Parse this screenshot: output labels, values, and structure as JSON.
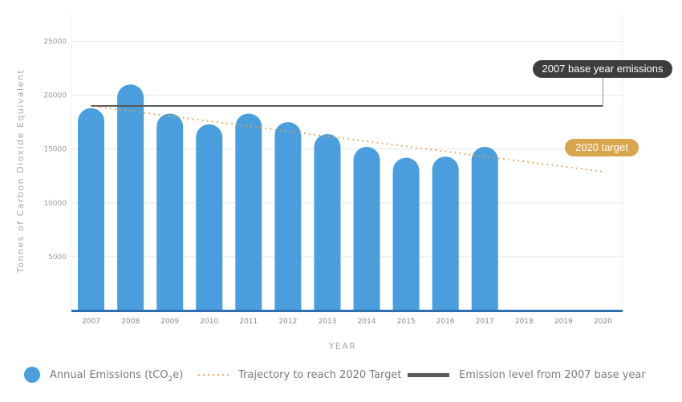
{
  "chart_data": {
    "type": "bar",
    "ylabel": "Tonnes of Carbon Dioxide Equivalent",
    "xlabel": "YEAR",
    "ylim": [
      0,
      27500
    ],
    "yticks": [
      5000,
      10000,
      15000,
      20000,
      25000
    ],
    "categories": [
      "2007",
      "2008",
      "2009",
      "2010",
      "2011",
      "2012",
      "2013",
      "2014",
      "2015",
      "2016",
      "2017",
      "2018",
      "2019",
      "2020"
    ],
    "series": [
      {
        "name": "Annual Emissions (tCO2e)",
        "type": "bar",
        "color": "#4a9ede",
        "values": [
          18800,
          21000,
          18300,
          17300,
          18300,
          17500,
          16400,
          15200,
          14200,
          14300,
          15200,
          null,
          null,
          null
        ]
      },
      {
        "name": "Trajectory to reach 2020 Target",
        "type": "line",
        "style": "dotted",
        "color": "#d9a64e",
        "points": [
          {
            "x": "2007",
            "y": 19000
          },
          {
            "x": "2020",
            "y": 12900
          }
        ]
      },
      {
        "name": "Emission level from 2007 base year",
        "type": "line",
        "style": "solid",
        "color": "#5a5a5a",
        "points": [
          {
            "x": "2007",
            "y": 19000
          },
          {
            "x": "2020",
            "y": 19000
          }
        ]
      }
    ],
    "annotations": [
      {
        "text": "2007 base year emissions",
        "color": "#3d3d3d",
        "refers_to": "Emission level from 2007 base year"
      },
      {
        "text": "2020 target",
        "color": "#d9a64e",
        "refers_to": "Trajectory to reach 2020 Target"
      }
    ],
    "grid": true
  },
  "legend": {
    "annual_prefix": "Annual Emissions (tCO",
    "annual_sub": "2",
    "annual_suffix": "e)",
    "trajectory": "Trajectory to reach 2020 Target",
    "base": "Emission level from 2007 base year"
  }
}
